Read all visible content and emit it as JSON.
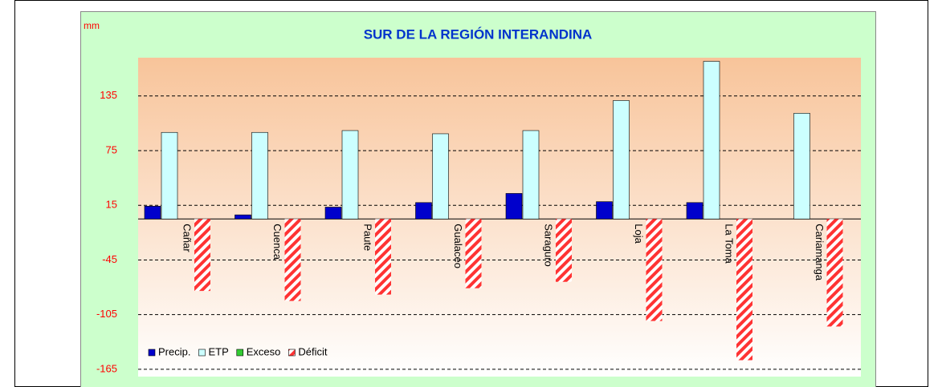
{
  "chart_data": {
    "type": "bar",
    "title": "SUR DE LA REGIÓN INTERANDINA",
    "y_label": "mm",
    "categories": [
      "Cañar",
      "Cuenca",
      "Paute",
      "Gualaceo",
      "Saraguro",
      "Loja",
      "La Toma",
      "Cariamanga"
    ],
    "series": [
      {
        "name": "Precip.",
        "color": "#0000cc",
        "values": [
          14,
          4.5,
          13,
          18,
          28,
          19,
          18,
          0
        ]
      },
      {
        "name": "ETP",
        "color": "#ccffff",
        "values": [
          95,
          95,
          97,
          93.5,
          97,
          130,
          173,
          116
        ]
      },
      {
        "name": "Exceso",
        "color": "#33cc33",
        "values": [
          0,
          0,
          0,
          0,
          0,
          0,
          0,
          0
        ]
      },
      {
        "name": "Déficit",
        "color": "#ff3333",
        "values": [
          -79,
          -90,
          -83,
          -76,
          -69,
          -112,
          -155,
          -118
        ]
      }
    ],
    "ylim": [
      -173,
      177
    ],
    "yticks": [
      -165,
      -105,
      -45,
      15,
      75,
      135
    ],
    "grid": true,
    "legend": "lower left"
  }
}
